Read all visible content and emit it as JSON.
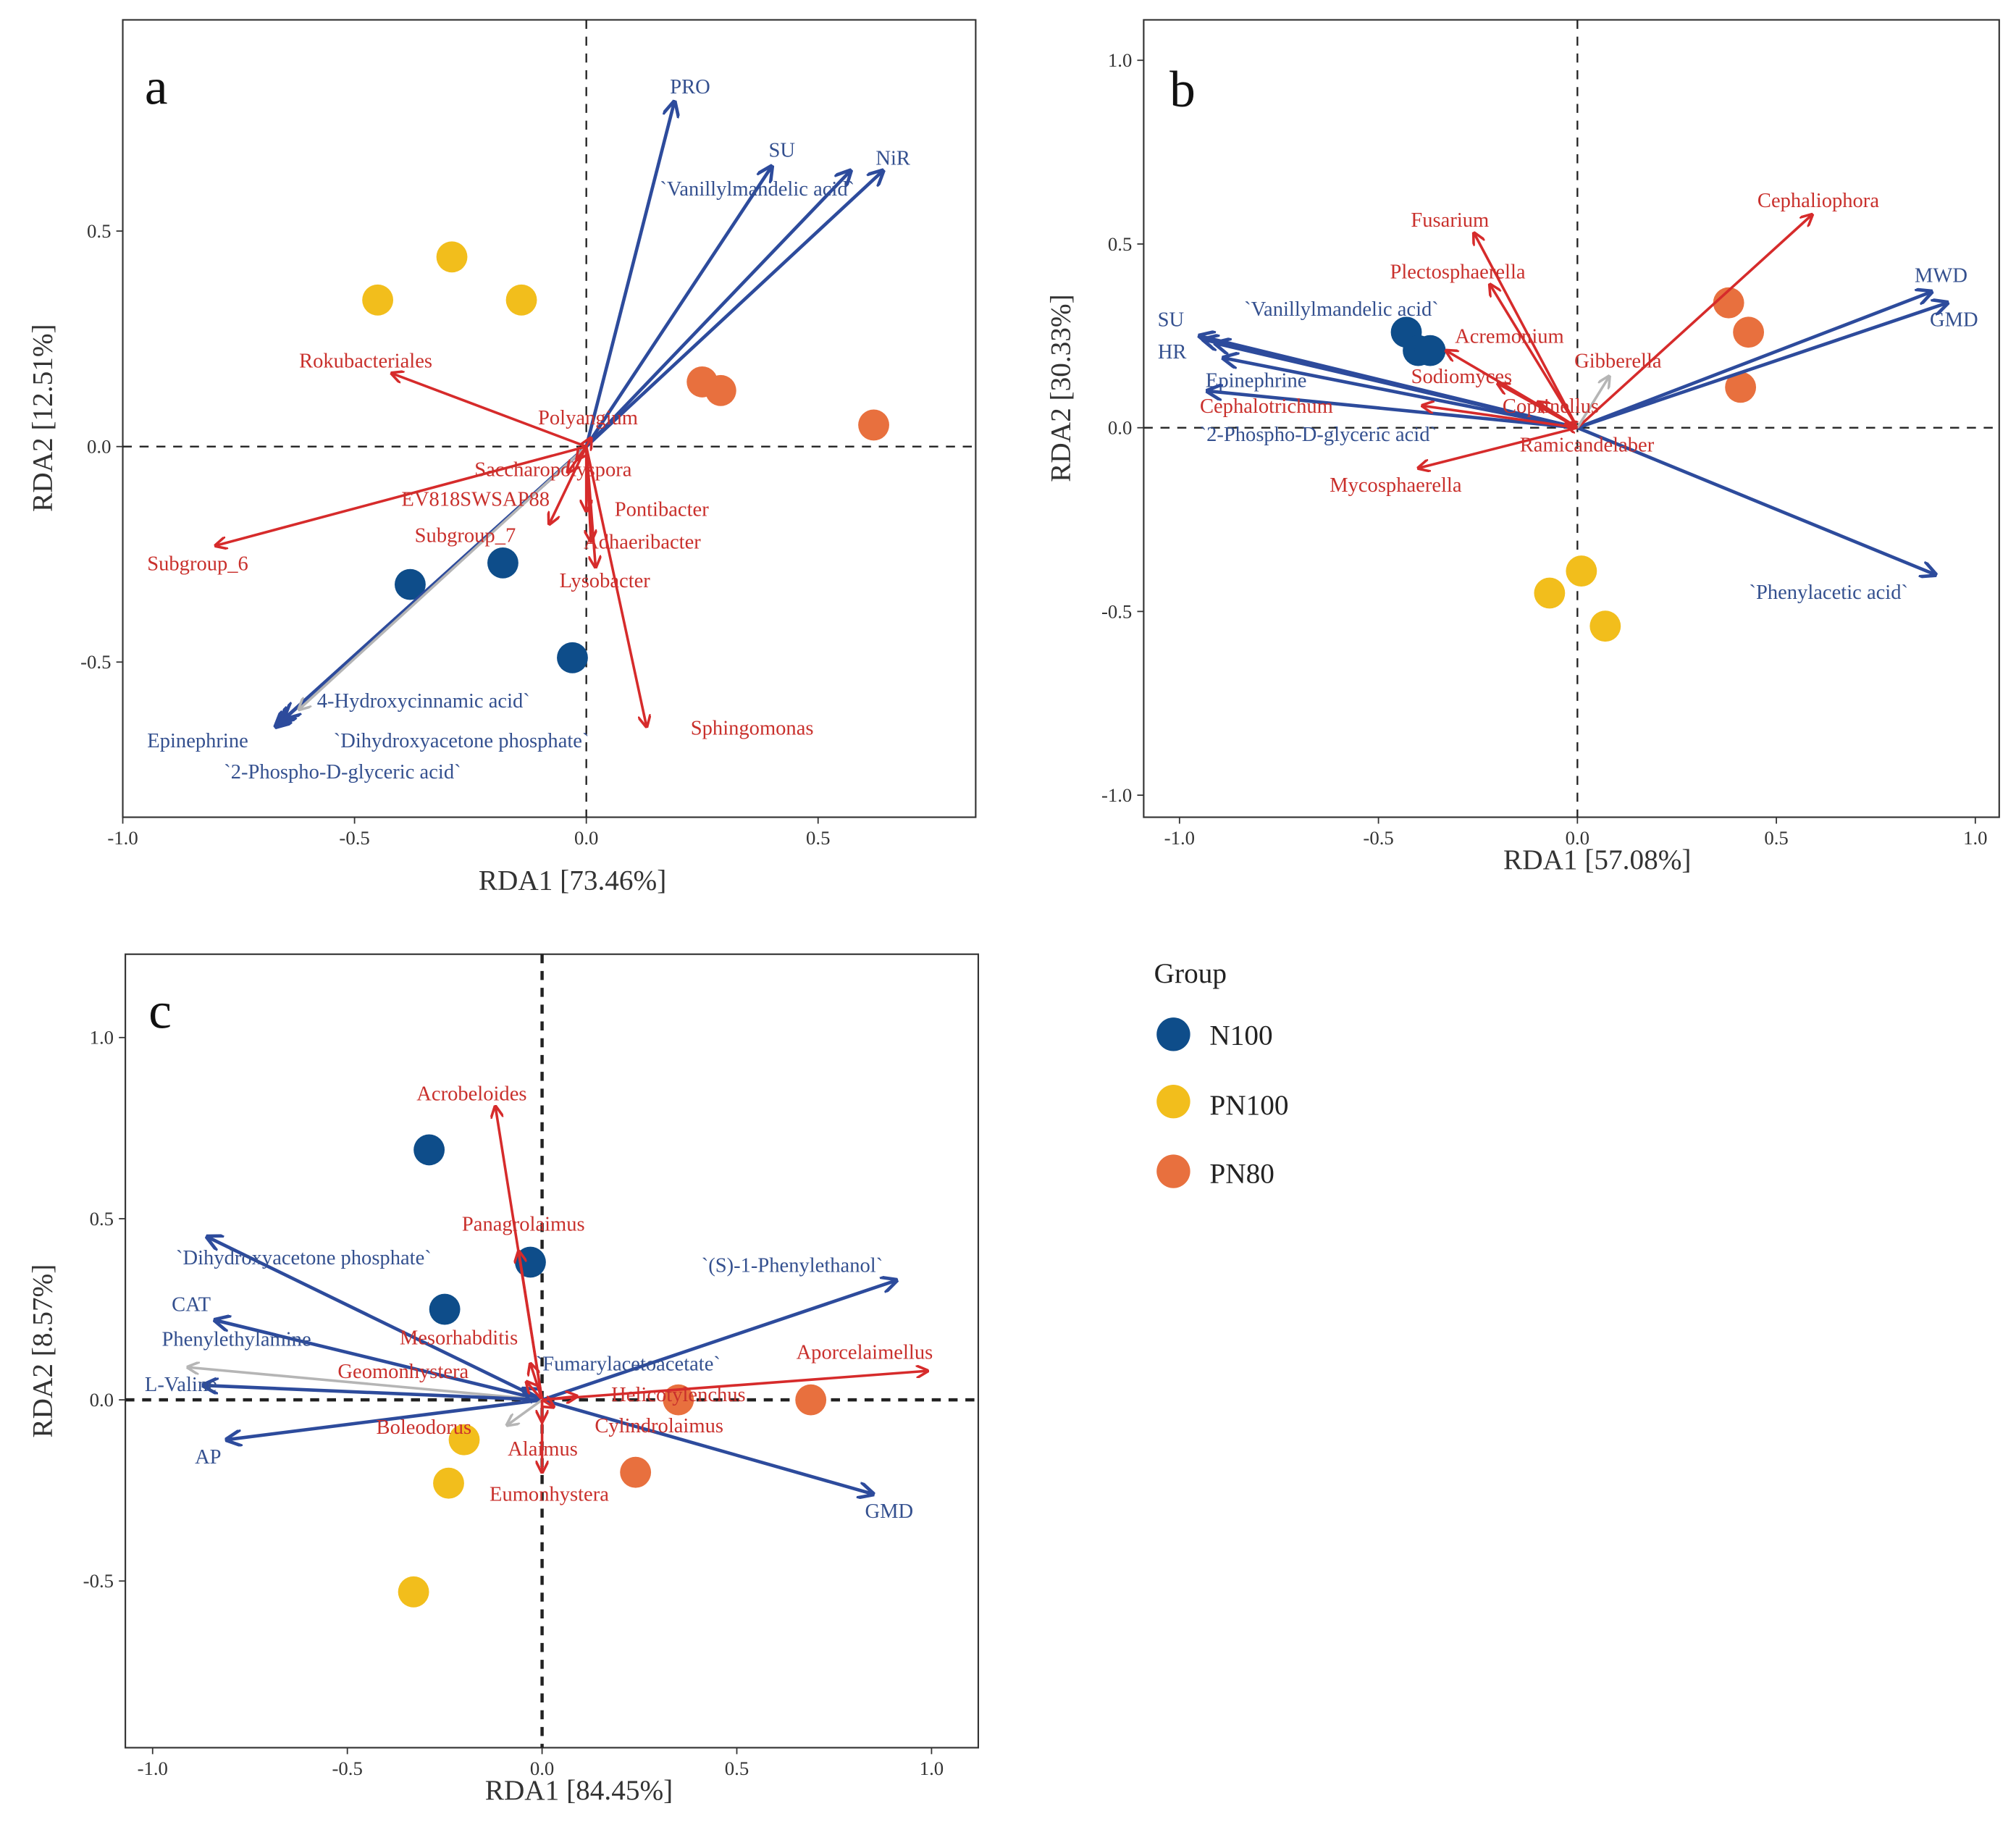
{
  "colors": {
    "N100": "#0e4d8a",
    "PN100": "#f2be1c",
    "PN80": "#e8703e",
    "environment": "#2d4b9c",
    "taxon": "#d62b2b",
    "environment_label": "#34508f",
    "taxon_label": "#c9302c",
    "minor": "#b5b5b5"
  },
  "legend": {
    "title": "Group",
    "items": [
      {
        "label": "N100",
        "color": "#0e4d8a"
      },
      {
        "label": "PN100",
        "color": "#f2be1c"
      },
      {
        "label": "PN80",
        "color": "#e8703e"
      }
    ]
  },
  "chart_data": [
    {
      "type": "scatter",
      "panel_label": "a",
      "xlabel": "RDA1 [73.46%]",
      "ylabel": "RDA2 [12.51%]",
      "xlim": [
        -1.0,
        0.84
      ],
      "ylim": [
        -0.86,
        0.99
      ],
      "xticks": [
        "-1.0",
        "-0.5",
        "0.0",
        "0.5"
      ],
      "yticks": [
        "-0.5",
        "0.0",
        "0.5"
      ],
      "grid": false,
      "points": [
        {
          "group": "N100",
          "x": -0.38,
          "y": -0.32
        },
        {
          "group": "N100",
          "x": -0.18,
          "y": -0.27
        },
        {
          "group": "N100",
          "x": -0.03,
          "y": -0.49
        },
        {
          "group": "PN100",
          "x": -0.45,
          "y": 0.34
        },
        {
          "group": "PN100",
          "x": -0.29,
          "y": 0.44
        },
        {
          "group": "PN100",
          "x": -0.14,
          "y": 0.34
        },
        {
          "group": "PN80",
          "x": 0.25,
          "y": 0.15
        },
        {
          "group": "PN80",
          "x": 0.29,
          "y": 0.13
        },
        {
          "group": "PN80",
          "x": 0.62,
          "y": 0.05
        }
      ],
      "arrows": [
        {
          "label": "PRO",
          "kind": "environment",
          "x": 0.19,
          "y": 0.8
        },
        {
          "label": "SU",
          "kind": "environment",
          "x": 0.4,
          "y": 0.65
        },
        {
          "label": "`Vanillylmandelic acid`",
          "kind": "environment",
          "x": 0.57,
          "y": 0.64
        },
        {
          "label": "NiR",
          "kind": "environment",
          "x": 0.64,
          "y": 0.64
        },
        {
          "label": "`4-Hydroxycinnamic acid`",
          "kind": "environment",
          "x": -0.65,
          "y": -0.63
        },
        {
          "label": "Epinephrine",
          "kind": "environment",
          "x": -0.66,
          "y": -0.64
        },
        {
          "label": "`Dihydroxyacetone phosphate`",
          "kind": "environment",
          "x": -0.67,
          "y": -0.65
        },
        {
          "label": "`2-Phospho-D-glyceric acid`",
          "kind": "minor",
          "x": -0.62,
          "y": -0.61
        },
        {
          "label": "Rokubacteriales",
          "kind": "taxon",
          "x": -0.42,
          "y": 0.17
        },
        {
          "label": "Subgroup_6",
          "kind": "taxon",
          "x": -0.8,
          "y": -0.23
        },
        {
          "label": "Polyangium",
          "kind": "taxon",
          "x": 0.01,
          "y": 0.02
        },
        {
          "label": "Saccharopolyspora",
          "kind": "taxon",
          "x": -0.02,
          "y": -0.03
        },
        {
          "label": "EV818SWSAP88",
          "kind": "taxon",
          "x": -0.08,
          "y": -0.18
        },
        {
          "label": "Subgroup_7",
          "kind": "taxon",
          "x": -0.04,
          "y": -0.06
        },
        {
          "label": "Pontibacter",
          "kind": "taxon",
          "x": 0.0,
          "y": -0.15
        },
        {
          "label": "Adhaeribacter",
          "kind": "taxon",
          "x": 0.01,
          "y": -0.22
        },
        {
          "label": "Lysobacter",
          "kind": "taxon",
          "x": 0.02,
          "y": -0.28
        },
        {
          "label": "Sphingomonas",
          "kind": "taxon",
          "x": 0.13,
          "y": -0.65
        }
      ]
    },
    {
      "type": "scatter",
      "panel_label": "b",
      "xlabel": "RDA1 [57.08%]",
      "ylabel": "RDA2 [30.33%]",
      "xlim": [
        -1.09,
        1.06
      ],
      "ylim": [
        -1.06,
        1.11
      ],
      "xticks": [
        "-1.0",
        "-0.5",
        "0.0",
        "0.5",
        "1.0"
      ],
      "yticks": [
        "-1.0",
        "-0.5",
        "0.0",
        "0.5",
        "1.0"
      ],
      "grid": false,
      "points": [
        {
          "group": "N100",
          "x": -0.43,
          "y": 0.26
        },
        {
          "group": "N100",
          "x": -0.4,
          "y": 0.21
        },
        {
          "group": "N100",
          "x": -0.37,
          "y": 0.21
        },
        {
          "group": "PN100",
          "x": 0.01,
          "y": -0.39
        },
        {
          "group": "PN100",
          "x": -0.07,
          "y": -0.45
        },
        {
          "group": "PN100",
          "x": 0.07,
          "y": -0.54
        },
        {
          "group": "PN80",
          "x": 0.38,
          "y": 0.34
        },
        {
          "group": "PN80",
          "x": 0.43,
          "y": 0.26
        },
        {
          "group": "PN80",
          "x": 0.41,
          "y": 0.11
        }
      ],
      "arrows": [
        {
          "label": "SU",
          "kind": "environment",
          "x": -0.95,
          "y": 0.25
        },
        {
          "label": "HR",
          "kind": "environment",
          "x": -0.94,
          "y": 0.24
        },
        {
          "label": "`Vanillylmandelic acid`",
          "kind": "environment",
          "x": -0.91,
          "y": 0.23
        },
        {
          "label": "Epinephrine",
          "kind": "environment",
          "x": -0.89,
          "y": 0.19
        },
        {
          "label": "`2-Phospho-D-glyceric acid`",
          "kind": "environment",
          "x": -0.93,
          "y": 0.1
        },
        {
          "label": "MWD",
          "kind": "environment",
          "x": 0.89,
          "y": 0.37
        },
        {
          "label": "GMD",
          "kind": "environment",
          "x": 0.93,
          "y": 0.34
        },
        {
          "label": "`Phenylacetic acid`",
          "kind": "environment",
          "x": 0.9,
          "y": -0.4
        },
        {
          "label": "Cephaliophora",
          "kind": "taxon",
          "x": 0.59,
          "y": 0.58
        },
        {
          "label": "Fusarium",
          "kind": "taxon",
          "x": -0.26,
          "y": 0.53
        },
        {
          "label": "Plectosphaerella",
          "kind": "taxon",
          "x": -0.22,
          "y": 0.39
        },
        {
          "label": "Acremonium",
          "kind": "taxon",
          "x": -0.33,
          "y": 0.21
        },
        {
          "label": "Gibberella",
          "kind": "minor",
          "x": 0.08,
          "y": 0.14
        },
        {
          "label": "Sodiomyces",
          "kind": "taxon",
          "x": -0.2,
          "y": 0.12
        },
        {
          "label": "Cephalotrichum",
          "kind": "taxon",
          "x": -0.39,
          "y": 0.06
        },
        {
          "label": "Coprinellus",
          "kind": "taxon",
          "x": -0.1,
          "y": 0.07
        },
        {
          "label": "Ramicandelaber",
          "kind": "taxon",
          "x": -0.03,
          "y": 0.01
        },
        {
          "label": "Mycosphaerella",
          "kind": "taxon",
          "x": -0.4,
          "y": -0.11
        }
      ]
    },
    {
      "type": "scatter",
      "panel_label": "c",
      "xlabel": "RDA1 [84.45%]",
      "ylabel": "RDA2 [8.57%]",
      "xlim": [
        -1.07,
        1.12
      ],
      "ylim": [
        -0.96,
        1.23
      ],
      "xticks": [
        "-1.0",
        "-0.5",
        "0.0",
        "0.5",
        "1.0"
      ],
      "yticks": [
        "-0.5",
        "0.0",
        "0.5",
        "1.0"
      ],
      "grid": false,
      "points": [
        {
          "group": "N100",
          "x": -0.29,
          "y": 0.69
        },
        {
          "group": "N100",
          "x": -0.25,
          "y": 0.25
        },
        {
          "group": "N100",
          "x": -0.03,
          "y": 0.38
        },
        {
          "group": "PN100",
          "x": -0.2,
          "y": -0.11
        },
        {
          "group": "PN100",
          "x": -0.24,
          "y": -0.23
        },
        {
          "group": "PN100",
          "x": -0.33,
          "y": -0.53
        },
        {
          "group": "PN80",
          "x": 0.35,
          "y": 0.0
        },
        {
          "group": "PN80",
          "x": 0.69,
          "y": 0.0
        },
        {
          "group": "PN80",
          "x": 0.24,
          "y": -0.2
        }
      ],
      "arrows": [
        {
          "label": "`Dihydroxyacetone phosphate`",
          "kind": "environment",
          "x": -0.86,
          "y": 0.45
        },
        {
          "label": "CAT",
          "kind": "environment",
          "x": -0.84,
          "y": 0.22
        },
        {
          "label": "Phenylethylamine",
          "kind": "minor",
          "x": -0.91,
          "y": 0.09
        },
        {
          "label": "L-Valine",
          "kind": "environment",
          "x": -0.87,
          "y": 0.04
        },
        {
          "label": "AP",
          "kind": "environment",
          "x": -0.81,
          "y": -0.11
        },
        {
          "label": "`(S)-1-Phenylethanol`",
          "kind": "environment",
          "x": 0.91,
          "y": 0.33
        },
        {
          "label": "GMD",
          "kind": "environment",
          "x": 0.85,
          "y": -0.26
        },
        {
          "label": "`Fumarylacetoacetate`",
          "kind": "environment",
          "x": -0.05,
          "y": 0.03
        },
        {
          "label": "Acrobeloides",
          "kind": "taxon",
          "x": -0.12,
          "y": 0.81
        },
        {
          "label": "Panagrolaimus",
          "kind": "taxon",
          "x": -0.06,
          "y": 0.41
        },
        {
          "label": "Mesorhabditis",
          "kind": "taxon",
          "x": -0.03,
          "y": 0.1
        },
        {
          "label": "Geomonhystera",
          "kind": "taxon",
          "x": -0.04,
          "y": 0.05
        },
        {
          "label": "Helicotylenchus",
          "kind": "taxon",
          "x": 0.09,
          "y": 0.01
        },
        {
          "label": "Aporcelaimellus",
          "kind": "taxon",
          "x": 0.99,
          "y": 0.08
        },
        {
          "label": "Boleodorus",
          "kind": "minor",
          "x": -0.09,
          "y": -0.07
        },
        {
          "label": "Cylindrolaimus",
          "kind": "taxon",
          "x": 0.03,
          "y": -0.02
        },
        {
          "label": "Alaimus",
          "kind": "taxon",
          "x": 0.0,
          "y": -0.06
        },
        {
          "label": "Eumonhystera",
          "kind": "taxon",
          "x": 0.0,
          "y": -0.2
        }
      ]
    }
  ]
}
